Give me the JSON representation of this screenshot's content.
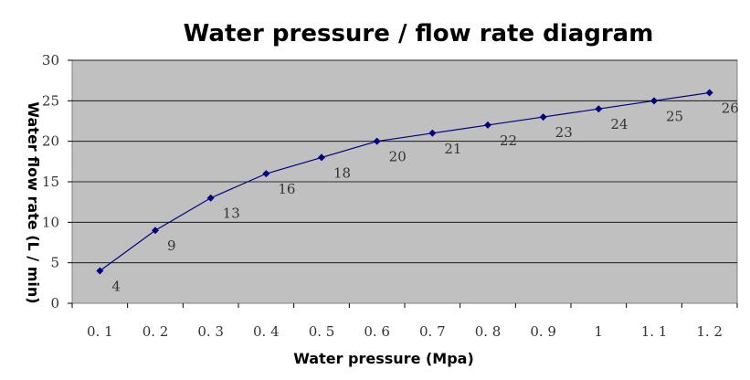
{
  "chart_data": {
    "type": "line",
    "title": "Water pressure / flow rate diagram",
    "xlabel": "Water pressure (Mpa)",
    "ylabel": "Water flow rate (L / min)",
    "x_tick_labels": [
      "0. 1",
      "0. 2",
      "0. 3",
      "0. 4",
      "0. 5",
      "0. 6",
      "0. 7",
      "0. 8",
      "0. 9",
      "1",
      "1. 1",
      "1. 2"
    ],
    "x": [
      0.1,
      0.2,
      0.3,
      0.4,
      0.5,
      0.6,
      0.7,
      0.8,
      0.9,
      1.0,
      1.1,
      1.2
    ],
    "values": [
      4,
      9,
      13,
      16,
      18,
      20,
      21,
      22,
      23,
      24,
      25,
      26
    ],
    "y_ticks": [
      0,
      5,
      10,
      15,
      20,
      25,
      30
    ],
    "ylim": [
      0,
      30
    ],
    "grid": true,
    "legend": false,
    "data_labels": true,
    "colors": {
      "plot_background": "#c0c0c0",
      "gridline": "#000000",
      "series": "#000080",
      "frame": "#808080"
    }
  }
}
